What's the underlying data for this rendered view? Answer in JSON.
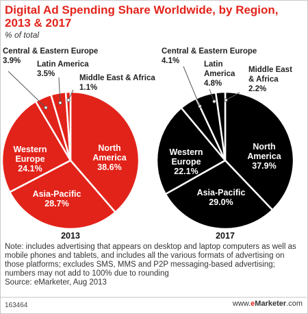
{
  "chart_data": [
    {
      "type": "pie",
      "year_label": "2013",
      "slices": [
        {
          "label": "North America",
          "value": 38.6
        },
        {
          "label": "Asia-Pacific",
          "value": 28.7
        },
        {
          "label": "Western Europe",
          "value": 24.1
        },
        {
          "label": "Central & Eastern Europe",
          "value": 3.9
        },
        {
          "label": "Latin America",
          "value": 3.5
        },
        {
          "label": "Middle East & Africa",
          "value": 1.1
        }
      ],
      "color": "#e2231a"
    },
    {
      "type": "pie",
      "year_label": "2017",
      "slices": [
        {
          "label": "North America",
          "value": 37.9
        },
        {
          "label": "Asia-Pacific",
          "value": 29.0
        },
        {
          "label": "Western Europe",
          "value": 22.1
        },
        {
          "label": "Central & Eastern Europe",
          "value": 4.1
        },
        {
          "label": "Latin America",
          "value": 4.8
        },
        {
          "label": "Middle East & Africa",
          "value": 2.2
        }
      ],
      "color": "#000000"
    }
  ],
  "header": {
    "title": "Digital Ad Spending Share Worldwide, by Region, 2013 & 2017",
    "subtitle": "% of total"
  },
  "labels_2013": {
    "north_america": [
      "North",
      "America",
      "38.6%"
    ],
    "asia_pacific": [
      "Asia-Pacific",
      "28.7%"
    ],
    "western_europe": [
      "Western",
      "Europe",
      "24.1%"
    ],
    "central_eastern_europe": [
      "Central & Eastern Europe",
      "3.9%"
    ],
    "latin_america": [
      "Latin America",
      "3.5%"
    ],
    "middle_east_africa": [
      "Middle East & Africa",
      "1.1%"
    ]
  },
  "labels_2017": {
    "north_america": [
      "North",
      "America",
      "37.9%"
    ],
    "asia_pacific": [
      "Asia-Pacific",
      "29.0%"
    ],
    "western_europe": [
      "Western",
      "Europe",
      "22.1%"
    ],
    "central_eastern_europe": [
      "Central & Eastern Europe",
      "4.1%"
    ],
    "latin_america": [
      "Latin",
      "America",
      "4.8%"
    ],
    "middle_east_africa": [
      "Middle East",
      "& Africa",
      "2.2%"
    ]
  },
  "note": "Note: includes advertising that appears on desktop and laptop computers as well as mobile phones and tablets, and includes all the various formats of advertising on those platforms; excludes SMS, MMS and P2P messaging-based advertising; numbers may not add to 100% due to rounding",
  "source": "Source: eMarketer, Aug 2013",
  "chart_id": "163464",
  "brand": {
    "prefix": "www.",
    "e": "e",
    "marketer": "Marketer",
    "suffix": ".com"
  }
}
